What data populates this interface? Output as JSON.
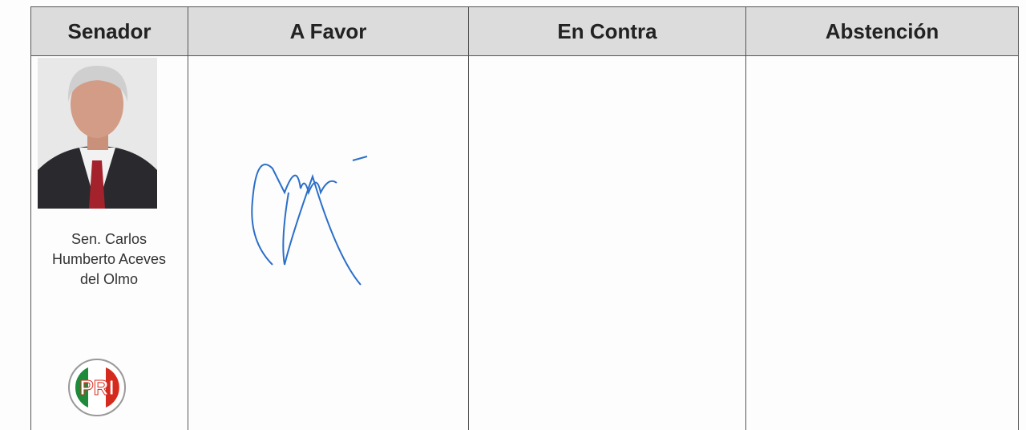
{
  "table": {
    "headers": [
      "Senador",
      "A Favor",
      "En Contra",
      "Abstención"
    ],
    "rows": [
      {
        "senator_name_lines": [
          "Sen. Carlos",
          "Humberto Aceves",
          "del Olmo"
        ],
        "party": "PRI"
      }
    ]
  }
}
